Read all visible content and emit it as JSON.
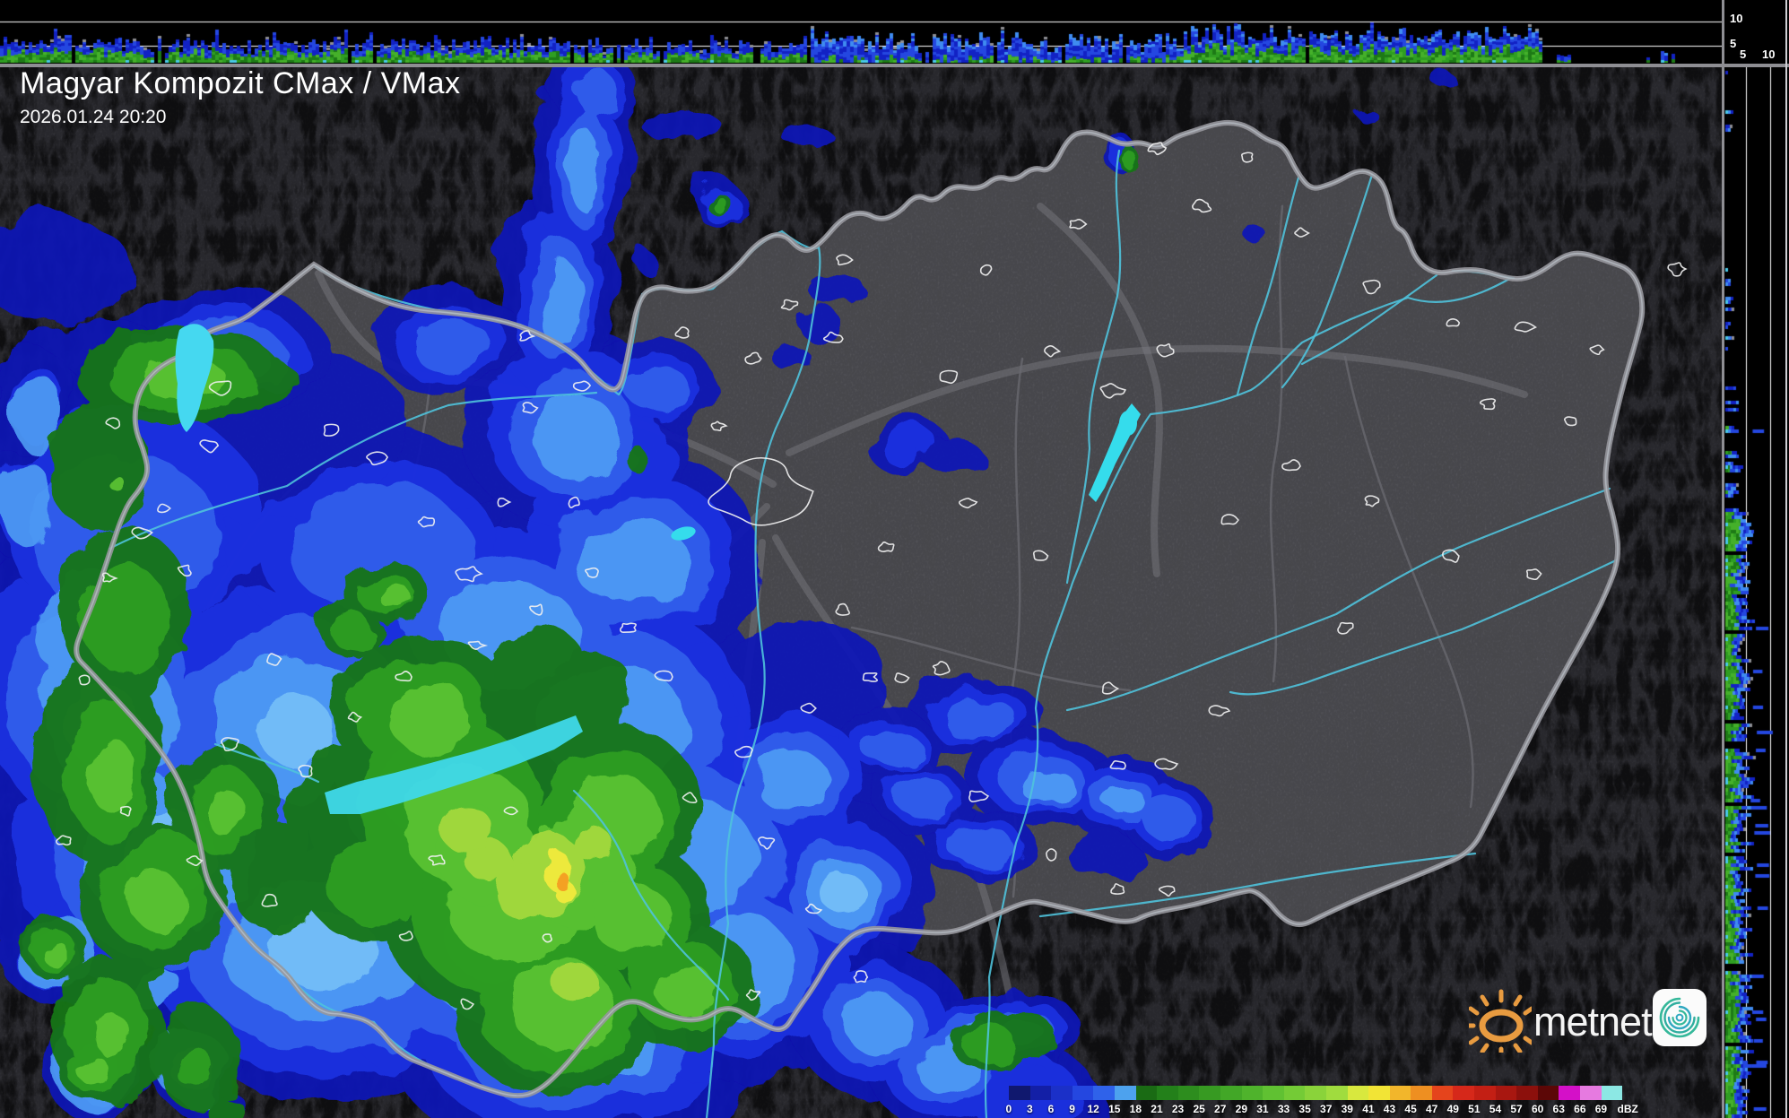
{
  "header": {
    "title": "Magyar Kompozit CMax / VMax",
    "datetime": "2026.01.24 20:20"
  },
  "axes": {
    "top_km": [
      "10",
      "5"
    ],
    "right_km": [
      "5",
      "10"
    ]
  },
  "scale": {
    "unit": "dBZ",
    "labels": [
      "0",
      "3",
      "6",
      "9",
      "12",
      "15",
      "18",
      "21",
      "23",
      "25",
      "27",
      "29",
      "31",
      "33",
      "35",
      "37",
      "39",
      "41",
      "43",
      "45",
      "47",
      "49",
      "51",
      "54",
      "57",
      "60",
      "63",
      "66",
      "69"
    ],
    "colors": [
      "#10186e",
      "#131fa6",
      "#1b30c8",
      "#2447e0",
      "#2f62ea",
      "#4da2ee",
      "#1a6b14",
      "#23801a",
      "#2d8d1e",
      "#379a22",
      "#42a727",
      "#4fb32c",
      "#60c132",
      "#74cb36",
      "#8ad33a",
      "#a0dc3e",
      "#d8e83e",
      "#f2e435",
      "#f2b62b",
      "#ee8f21",
      "#e5441c",
      "#d6281a",
      "#c31f14",
      "#a81710",
      "#8c100c",
      "#5c0706",
      "#d410c8",
      "#e67ae0",
      "#8ce8e4"
    ]
  },
  "logo": {
    "text": "metnet"
  },
  "palette": {
    "echo_blue_dark": "#0d12b8",
    "echo_blue": "#1d33e2",
    "echo_blue_mid": "#3261ec",
    "echo_blue_light": "#4f9df4",
    "echo_blue_pale": "#78c2f8",
    "echo_green_dark": "#187517",
    "echo_green": "#2f9e22",
    "echo_green_bright": "#5ac231",
    "echo_green_yellow": "#a6da3c",
    "echo_yellow": "#f2ea3c",
    "echo_orange": "#f59e22",
    "river": "#4fc2dc",
    "lake": "#3fd8ea",
    "border": "#97979d",
    "county": "#6a6a70",
    "motorway": "#7c7c82",
    "city_outline": "#f0f0f0",
    "profile_gray_cap": "#8e8e92",
    "profile_cyan": "#49c8e8"
  }
}
